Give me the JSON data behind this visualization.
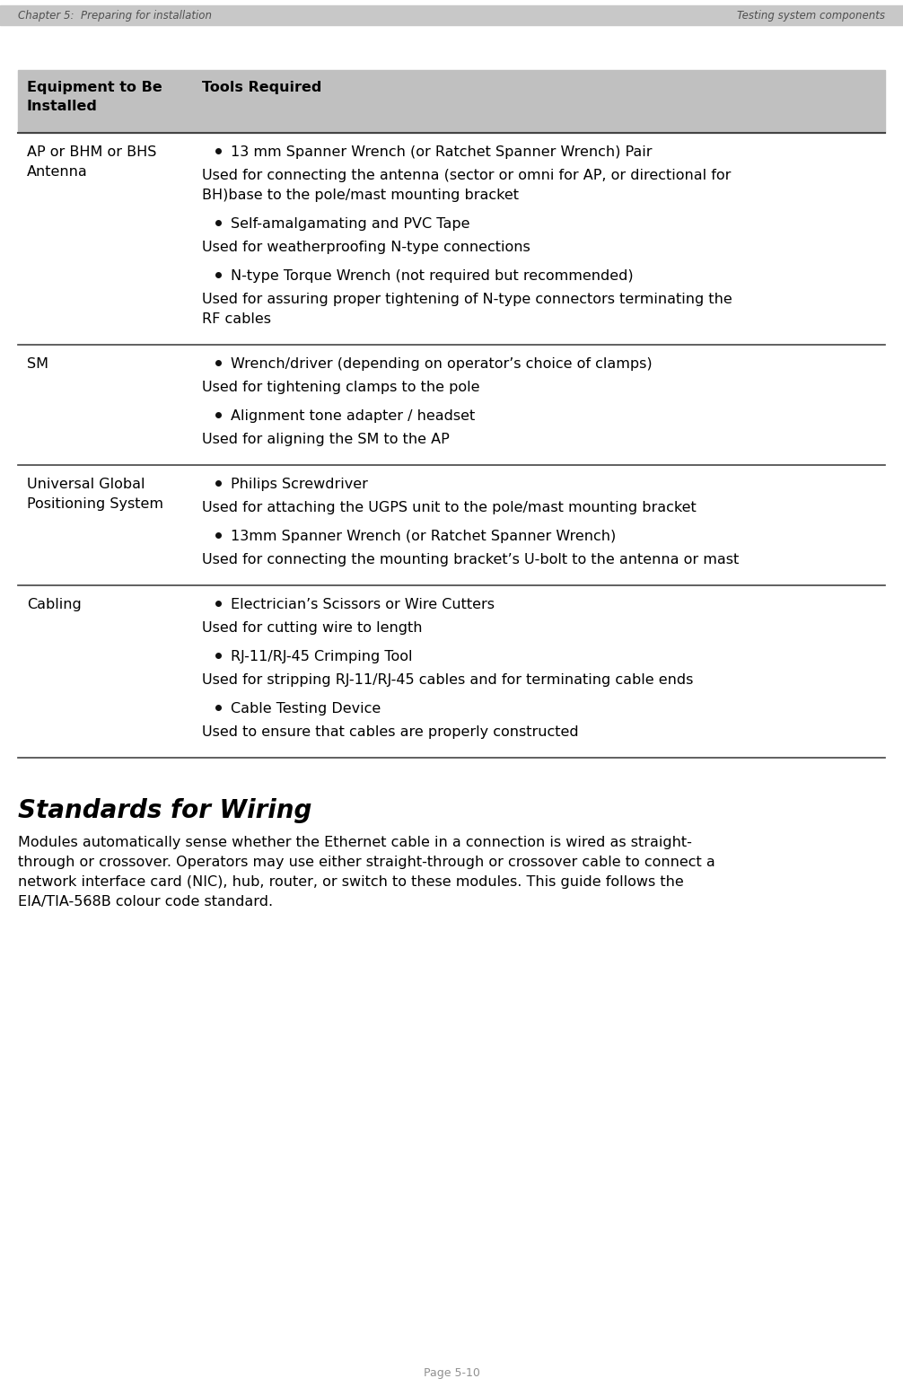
{
  "header_left": "Chapter 5:  Preparing for installation",
  "header_right": "Testing system components",
  "footer": "Page 5-10",
  "header_bg": "#c8c8c8",
  "table_header_bg": "#c0c0c0",
  "table_header_col1": "Equipment to Be\nInstalled",
  "table_header_col2": "Tools Required",
  "bg_color": "#ffffff",
  "text_color": "#000000",
  "header_text_color": "#505050",
  "footer_color": "#909090",
  "section_title": "Standards for Wiring",
  "section_body_lines": [
    "Modules automatically sense whether the Ethernet cable in a connection is wired as straight-",
    "through or crossover. Operators may use either straight-through or crossover cable to connect a",
    "network interface card (NIC), hub, router, or switch to these modules. This guide follows the",
    "EIA/TIA-568B colour code standard."
  ]
}
